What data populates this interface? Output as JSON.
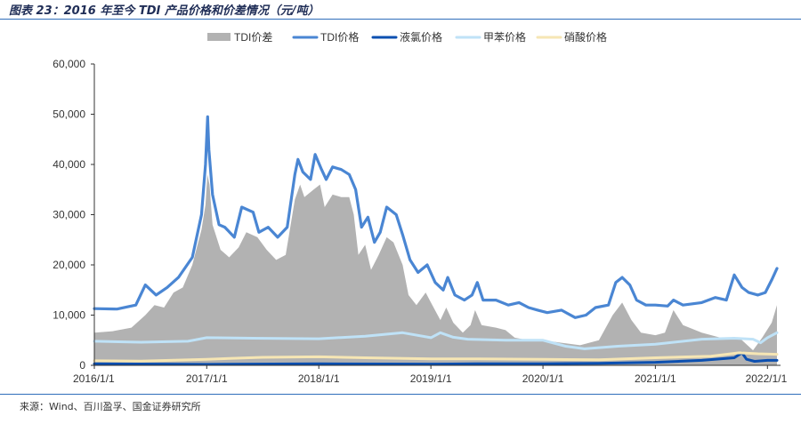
{
  "figure": {
    "title": "图表 23：2016 年至今 TDI 产品价格和价差情况（元/吨）",
    "source": "来源：Wind、百川盈孚、国金证券研究所"
  },
  "chart_data": {
    "type": "line",
    "xlim": [
      "2016-01-01",
      "2022-02-01"
    ],
    "ylim": [
      0,
      60000
    ],
    "y_ticks": [
      0,
      10000,
      20000,
      30000,
      40000,
      50000,
      60000
    ],
    "y_tick_labels": [
      "0",
      "10,000",
      "20,000",
      "30,000",
      "40,000",
      "50,000",
      "60,000"
    ],
    "x_ticks": [
      "2016-01-01",
      "2017-01-01",
      "2018-01-01",
      "2019-01-01",
      "2020-01-01",
      "2021-01-01",
      "2022-01-01"
    ],
    "x_tick_labels": [
      "2016/1/1",
      "2017/1/1",
      "2018/1/1",
      "2019/1/1",
      "2020/1/1",
      "2021/1/1",
      "2022/1/1"
    ],
    "grid": false,
    "legend_position": "top",
    "colors": {
      "spread": "#b2b2b2",
      "tdi": "#4a86d3",
      "chlorine": "#0b4fb0",
      "toluene": "#bfe2f7",
      "nitric": "#f6e6b4"
    },
    "series": [
      {
        "name": "TDI价差",
        "type": "area",
        "color_key": "spread",
        "points": [
          [
            "2016-01-01",
            6500
          ],
          [
            "2016-03-01",
            6800
          ],
          [
            "2016-05-01",
            7500
          ],
          [
            "2016-06-15",
            10000
          ],
          [
            "2016-07-15",
            12000
          ],
          [
            "2016-08-15",
            11500
          ],
          [
            "2016-09-15",
            14500
          ],
          [
            "2016-10-15",
            15500
          ],
          [
            "2016-11-15",
            20000
          ],
          [
            "2016-12-15",
            27000
          ],
          [
            "2016-12-28",
            32000
          ],
          [
            "2017-01-03",
            38000
          ],
          [
            "2017-01-10",
            36000
          ],
          [
            "2017-01-20",
            28000
          ],
          [
            "2017-02-15",
            23000
          ],
          [
            "2017-03-15",
            21500
          ],
          [
            "2017-04-15",
            23500
          ],
          [
            "2017-05-10",
            26500
          ],
          [
            "2017-06-15",
            25500
          ],
          [
            "2017-07-15",
            23000
          ],
          [
            "2017-08-15",
            21000
          ],
          [
            "2017-09-15",
            22000
          ],
          [
            "2017-10-15",
            33000
          ],
          [
            "2017-11-01",
            36000
          ],
          [
            "2017-11-15",
            33500
          ],
          [
            "2017-12-15",
            35000
          ],
          [
            "2018-01-05",
            36000
          ],
          [
            "2018-01-20",
            31500
          ],
          [
            "2018-02-15",
            34000
          ],
          [
            "2018-03-15",
            33500
          ],
          [
            "2018-04-10",
            33500
          ],
          [
            "2018-04-25",
            30000
          ],
          [
            "2018-05-10",
            22000
          ],
          [
            "2018-06-01",
            24000
          ],
          [
            "2018-06-20",
            19000
          ],
          [
            "2018-07-15",
            22000
          ],
          [
            "2018-08-10",
            25500
          ],
          [
            "2018-09-01",
            24500
          ],
          [
            "2018-10-01",
            20000
          ],
          [
            "2018-10-20",
            14000
          ],
          [
            "2018-11-15",
            12000
          ],
          [
            "2018-12-15",
            14500
          ],
          [
            "2019-01-01",
            12500
          ],
          [
            "2019-02-01",
            9000
          ],
          [
            "2019-02-20",
            11500
          ],
          [
            "2019-03-15",
            8500
          ],
          [
            "2019-04-15",
            6500
          ],
          [
            "2019-05-10",
            8000
          ],
          [
            "2019-05-25",
            11000
          ],
          [
            "2019-06-15",
            8000
          ],
          [
            "2019-08-01",
            7500
          ],
          [
            "2019-09-01",
            7000
          ],
          [
            "2019-10-01",
            5500
          ],
          [
            "2019-11-15",
            5000
          ],
          [
            "2020-01-01",
            5000
          ],
          [
            "2020-03-01",
            4500
          ],
          [
            "2020-05-01",
            4000
          ],
          [
            "2020-07-01",
            5000
          ],
          [
            "2020-08-15",
            10000
          ],
          [
            "2020-09-15",
            12500
          ],
          [
            "2020-10-15",
            9000
          ],
          [
            "2020-11-15",
            6500
          ],
          [
            "2021-01-01",
            6000
          ],
          [
            "2021-02-01",
            6500
          ],
          [
            "2021-03-01",
            11000
          ],
          [
            "2021-04-01",
            8000
          ],
          [
            "2021-06-01",
            6500
          ],
          [
            "2021-08-01",
            5500
          ],
          [
            "2021-10-01",
            5500
          ],
          [
            "2021-11-15",
            3000
          ],
          [
            "2021-12-15",
            5500
          ],
          [
            "2022-01-15",
            8500
          ],
          [
            "2022-02-01",
            12000
          ]
        ]
      },
      {
        "name": "TDI价格",
        "type": "line",
        "color_key": "tdi",
        "points": [
          [
            "2016-01-01",
            11300
          ],
          [
            "2016-03-15",
            11200
          ],
          [
            "2016-05-15",
            12000
          ],
          [
            "2016-06-15",
            16000
          ],
          [
            "2016-07-20",
            14000
          ],
          [
            "2016-08-25",
            15500
          ],
          [
            "2016-10-01",
            17500
          ],
          [
            "2016-11-15",
            21500
          ],
          [
            "2016-12-15",
            30000
          ],
          [
            "2016-12-28",
            40000
          ],
          [
            "2017-01-04",
            49500
          ],
          [
            "2017-01-08",
            43000
          ],
          [
            "2017-01-20",
            34000
          ],
          [
            "2017-02-10",
            28000
          ],
          [
            "2017-03-01",
            27500
          ],
          [
            "2017-04-01",
            25500
          ],
          [
            "2017-04-25",
            31500
          ],
          [
            "2017-06-01",
            30500
          ],
          [
            "2017-06-20",
            26500
          ],
          [
            "2017-07-20",
            27500
          ],
          [
            "2017-08-20",
            25500
          ],
          [
            "2017-09-20",
            27500
          ],
          [
            "2017-10-15",
            38000
          ],
          [
            "2017-10-25",
            41000
          ],
          [
            "2017-11-10",
            38500
          ],
          [
            "2017-12-05",
            37000
          ],
          [
            "2017-12-20",
            42000
          ],
          [
            "2018-01-10",
            39000
          ],
          [
            "2018-01-25",
            37000
          ],
          [
            "2018-02-15",
            39500
          ],
          [
            "2018-03-15",
            39000
          ],
          [
            "2018-04-10",
            38000
          ],
          [
            "2018-05-01",
            35000
          ],
          [
            "2018-05-20",
            27500
          ],
          [
            "2018-06-10",
            29500
          ],
          [
            "2018-07-01",
            24500
          ],
          [
            "2018-07-20",
            26500
          ],
          [
            "2018-08-10",
            31500
          ],
          [
            "2018-09-10",
            30000
          ],
          [
            "2018-10-01",
            26000
          ],
          [
            "2018-10-25",
            21000
          ],
          [
            "2018-11-20",
            18500
          ],
          [
            "2018-12-20",
            20000
          ],
          [
            "2019-01-15",
            16500
          ],
          [
            "2019-02-10",
            15000
          ],
          [
            "2019-02-25",
            17500
          ],
          [
            "2019-03-20",
            14000
          ],
          [
            "2019-04-20",
            13000
          ],
          [
            "2019-05-15",
            14000
          ],
          [
            "2019-06-01",
            16500
          ],
          [
            "2019-06-20",
            13000
          ],
          [
            "2019-08-01",
            13000
          ],
          [
            "2019-09-10",
            12000
          ],
          [
            "2019-10-15",
            12500
          ],
          [
            "2019-11-15",
            11500
          ],
          [
            "2019-12-15",
            11000
          ],
          [
            "2020-01-15",
            10500
          ],
          [
            "2020-03-01",
            11000
          ],
          [
            "2020-04-15",
            9500
          ],
          [
            "2020-05-20",
            10000
          ],
          [
            "2020-06-20",
            11500
          ],
          [
            "2020-08-01",
            12000
          ],
          [
            "2020-08-25",
            16500
          ],
          [
            "2020-09-15",
            17500
          ],
          [
            "2020-10-10",
            16000
          ],
          [
            "2020-11-01",
            13000
          ],
          [
            "2020-12-01",
            12000
          ],
          [
            "2021-01-01",
            12000
          ],
          [
            "2021-02-10",
            11800
          ],
          [
            "2021-03-01",
            13000
          ],
          [
            "2021-04-01",
            12000
          ],
          [
            "2021-06-01",
            12500
          ],
          [
            "2021-07-15",
            13500
          ],
          [
            "2021-08-20",
            13000
          ],
          [
            "2021-09-15",
            18000
          ],
          [
            "2021-10-10",
            15500
          ],
          [
            "2021-11-01",
            14500
          ],
          [
            "2021-12-01",
            14000
          ],
          [
            "2021-12-25",
            14500
          ],
          [
            "2022-01-15",
            17000
          ],
          [
            "2022-02-01",
            19300
          ]
        ]
      },
      {
        "name": "液氯价格",
        "type": "line",
        "color_key": "chlorine",
        "points": [
          [
            "2016-01-01",
            300
          ],
          [
            "2017-01-01",
            200
          ],
          [
            "2018-01-01",
            300
          ],
          [
            "2019-01-01",
            250
          ],
          [
            "2019-06-01",
            300
          ],
          [
            "2020-01-01",
            300
          ],
          [
            "2020-07-01",
            400
          ],
          [
            "2021-01-01",
            600
          ],
          [
            "2021-06-01",
            1000
          ],
          [
            "2021-09-15",
            1500
          ],
          [
            "2021-10-10",
            2500
          ],
          [
            "2021-10-25",
            1200
          ],
          [
            "2021-11-20",
            800
          ],
          [
            "2022-01-01",
            1000
          ],
          [
            "2022-02-01",
            1000
          ]
        ]
      },
      {
        "name": "甲苯价格",
        "type": "line",
        "color_key": "toluene",
        "points": [
          [
            "2016-01-01",
            4800
          ],
          [
            "2016-06-01",
            4600
          ],
          [
            "2016-11-01",
            4800
          ],
          [
            "2017-01-01",
            5500
          ],
          [
            "2017-06-01",
            5400
          ],
          [
            "2018-01-01",
            5300
          ],
          [
            "2018-06-01",
            5800
          ],
          [
            "2018-10-01",
            6500
          ],
          [
            "2019-01-01",
            5500
          ],
          [
            "2019-02-01",
            6500
          ],
          [
            "2019-03-15",
            5600
          ],
          [
            "2019-05-01",
            5200
          ],
          [
            "2019-09-01",
            5000
          ],
          [
            "2020-01-01",
            5000
          ],
          [
            "2020-03-15",
            3800
          ],
          [
            "2020-05-15",
            3300
          ],
          [
            "2020-09-01",
            3800
          ],
          [
            "2021-01-01",
            4200
          ],
          [
            "2021-06-01",
            5200
          ],
          [
            "2021-09-15",
            5400
          ],
          [
            "2021-11-15",
            5200
          ],
          [
            "2021-12-10",
            4500
          ],
          [
            "2022-01-01",
            5500
          ],
          [
            "2022-02-01",
            6500
          ]
        ]
      },
      {
        "name": "硝酸价格",
        "type": "line",
        "color_key": "nitric",
        "points": [
          [
            "2016-01-01",
            900
          ],
          [
            "2016-06-01",
            850
          ],
          [
            "2017-01-01",
            1200
          ],
          [
            "2017-07-01",
            1600
          ],
          [
            "2018-01-01",
            1700
          ],
          [
            "2018-06-01",
            1500
          ],
          [
            "2019-01-01",
            1300
          ],
          [
            "2019-06-01",
            1300
          ],
          [
            "2020-01-01",
            1200
          ],
          [
            "2020-07-01",
            1100
          ],
          [
            "2021-01-01",
            1500
          ],
          [
            "2021-07-01",
            1800
          ],
          [
            "2021-10-01",
            2500
          ],
          [
            "2021-12-01",
            2300
          ],
          [
            "2022-02-01",
            2200
          ]
        ]
      }
    ]
  }
}
